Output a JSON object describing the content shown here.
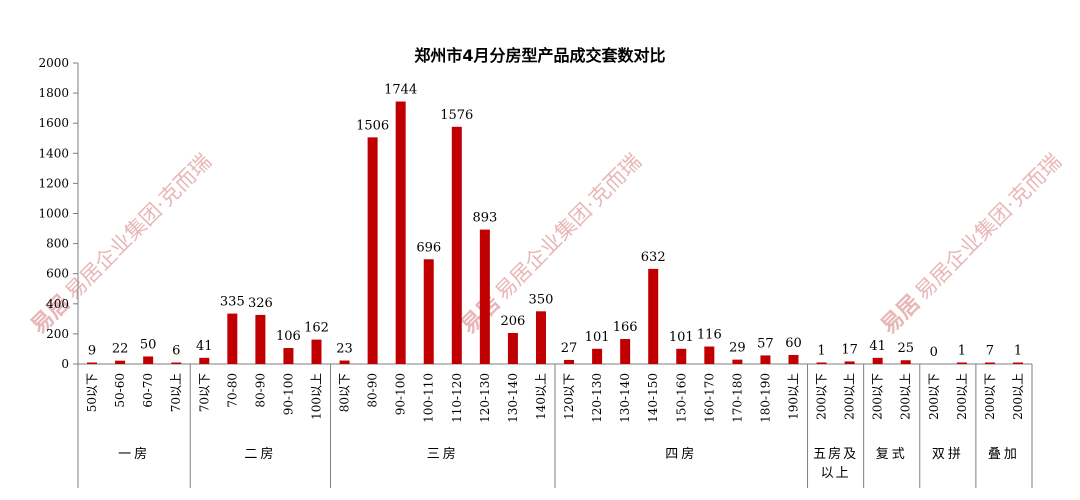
{
  "chart_data": {
    "type": "bar",
    "title": "郑州市4月分房型产品成交套数对比",
    "ylim": [
      0,
      2000
    ],
    "yticks": [
      0,
      200,
      400,
      600,
      800,
      1000,
      1200,
      1400,
      1600,
      1800,
      2000
    ],
    "grid": false,
    "legend": "none",
    "bar_color": "#c00000",
    "categories": [
      "50以下",
      "50-60",
      "60-70",
      "70以上",
      "70以下",
      "70-80",
      "80-90",
      "90-100",
      "100以上",
      "80以下",
      "80-90",
      "90-100",
      "100-110",
      "110-120",
      "120-130",
      "130-140",
      "140以上",
      "120以下",
      "120-130",
      "130-140",
      "140-150",
      "150-160",
      "160-170",
      "170-180",
      "180-190",
      "190以上",
      "200以下",
      "200以上",
      "200以下",
      "200以上",
      "200以下",
      "200以上",
      "200以下",
      "200以上"
    ],
    "values": [
      9,
      22,
      50,
      6,
      41,
      335,
      326,
      106,
      162,
      23,
      1506,
      1744,
      696,
      1576,
      893,
      206,
      350,
      27,
      101,
      166,
      632,
      101,
      116,
      29,
      57,
      60,
      1,
      17,
      41,
      25,
      0,
      1,
      7,
      1
    ],
    "groups": [
      {
        "label": "一房",
        "count": 4
      },
      {
        "label": "二房",
        "count": 5
      },
      {
        "label": "三房",
        "count": 8
      },
      {
        "label": "四房",
        "count": 9
      },
      {
        "label": "五房及以上",
        "count": 2
      },
      {
        "label": "复式",
        "count": 2
      },
      {
        "label": "双拼",
        "count": 2
      },
      {
        "label": "叠加",
        "count": 2
      }
    ]
  },
  "watermark": {
    "logo_text": "易居",
    "text": "易居企业集团·克而瑞"
  }
}
